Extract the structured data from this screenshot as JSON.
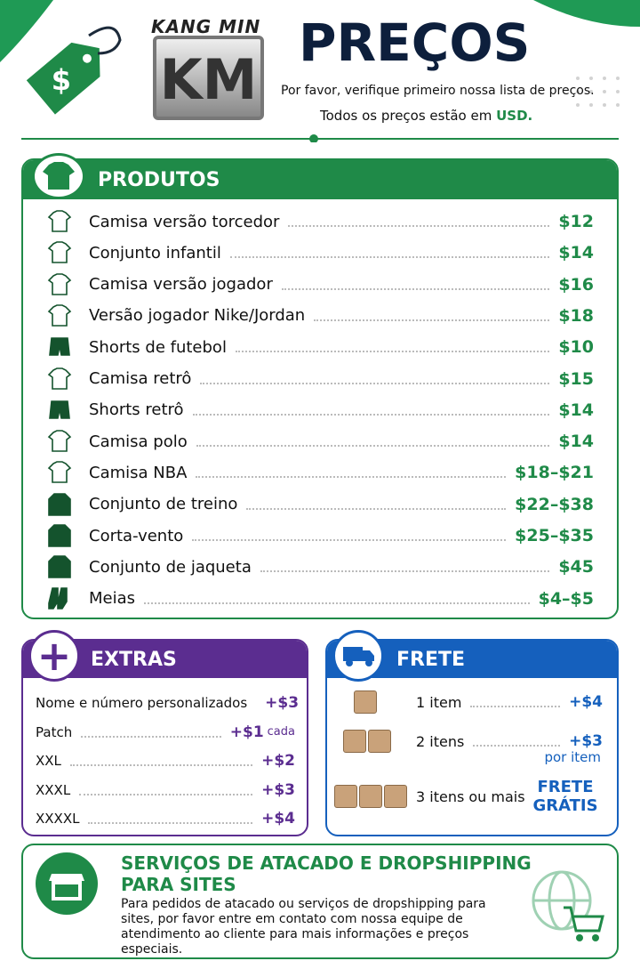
{
  "header": {
    "brand_top": "KANG MIN",
    "brand_logo": "KM",
    "title": "PREÇOS",
    "subtitle": "Por favor, verifique primeiro nossa lista de preços.",
    "note_prefix": "Todos os preços estão em",
    "note_currency": "USD."
  },
  "products": {
    "title": "PRODUTOS",
    "items": [
      {
        "name": "Camisa versão torcedor",
        "price": "$12"
      },
      {
        "name": "Conjunto infantil",
        "price": "$14"
      },
      {
        "name": "Camisa versão jogador",
        "price": "$16"
      },
      {
        "name": "Versão jogador Nike/Jordan",
        "price": "$18"
      },
      {
        "name": "Shorts de futebol",
        "price": "$10"
      },
      {
        "name": "Camisa retrô",
        "price": "$15"
      },
      {
        "name": "Shorts retrô",
        "price": "$14"
      },
      {
        "name": "Camisa polo",
        "price": "$14"
      },
      {
        "name": "Camisa NBA",
        "price": "$18–$21"
      },
      {
        "name": "Conjunto de treino",
        "price": "$22–$38"
      },
      {
        "name": "Corta-vento",
        "price": "$25–$35"
      },
      {
        "name": "Conjunto de jaqueta",
        "price": "$45"
      },
      {
        "name": "Meias",
        "price": "$4–$5"
      }
    ]
  },
  "extras": {
    "title": "EXTRAS",
    "items": [
      {
        "name": "Nome e número personalizados",
        "price": "+$3"
      },
      {
        "name": "Patch",
        "price": "+$1",
        "unit": "cada"
      },
      {
        "name": "XXL",
        "price": "+$2"
      },
      {
        "name": "XXXL",
        "price": "+$3"
      },
      {
        "name": "XXXXL",
        "price": "+$4"
      }
    ]
  },
  "shipping": {
    "title": "FRETE",
    "items": [
      {
        "name": "1 item",
        "price": "+$4"
      },
      {
        "name": "2 itens",
        "price": "+$3",
        "unit": "por item"
      },
      {
        "name": "3 itens ou mais",
        "price": "FRETE GRÁTIS"
      }
    ]
  },
  "wholesale": {
    "title": "SERVIÇOS DE ATACADO E DROPSHIPPING PARA SITES",
    "text": "Para pedidos de atacado ou serviços de dropshipping para sites, por favor entre em contato com nossa equipe de atendimento ao cliente para mais informações e preços especiais."
  }
}
